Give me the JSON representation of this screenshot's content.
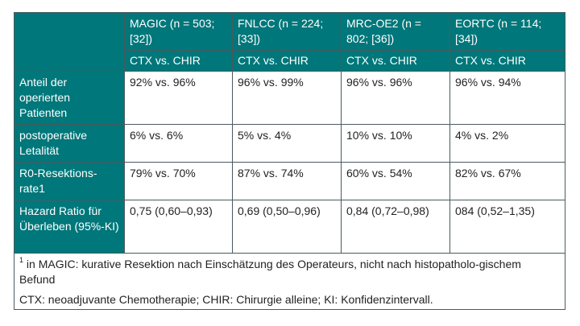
{
  "table": {
    "header": {
      "corner": "",
      "studies": [
        "MAGIC (n = 503; [32])",
        "FNLCC (n = 224; [33])",
        "MRC-OE2 (n = 802; [36])",
        "EORTC (n = 114; [34])"
      ],
      "comparison": [
        "CTX vs. CHIR",
        "CTX vs. CHIR",
        "CTX vs. CHIR",
        "CTX vs. CHIR"
      ]
    },
    "rows": [
      {
        "label": "Anteil der operierten Patienten",
        "values": [
          "92% vs. 96%",
          "96% vs. 99%",
          "96% vs. 96%",
          "96% vs. 94%"
        ]
      },
      {
        "label": "postoperative Letalität",
        "values": [
          "6% vs. 6%",
          "5% vs. 4%",
          "10% vs. 10%",
          "4% vs. 2%"
        ]
      },
      {
        "label": "R0-Resektions-rate1",
        "values": [
          "79% vs. 70%",
          "87% vs. 74%",
          "60% vs. 54%",
          "82% vs. 67%"
        ]
      },
      {
        "label": "Hazard Ratio für Überleben (95%-KI)",
        "values": [
          "0,75 (0,60–0,93)",
          "0,69 (0,50–0,96)",
          "0,84 (0,72–0,98)",
          "084 (0,52–1,35)"
        ]
      }
    ],
    "footnote": {
      "marker": "1",
      "text": " in MAGIC: kurative Resektion nach Einschätzung des Operateurs, nicht nach histopatholo-gischem Befund",
      "abbreviations": "CTX: neoadjuvante Chemotherapie; CHIR: Chirurgie alleine; KI: Konfidenzintervall."
    }
  }
}
